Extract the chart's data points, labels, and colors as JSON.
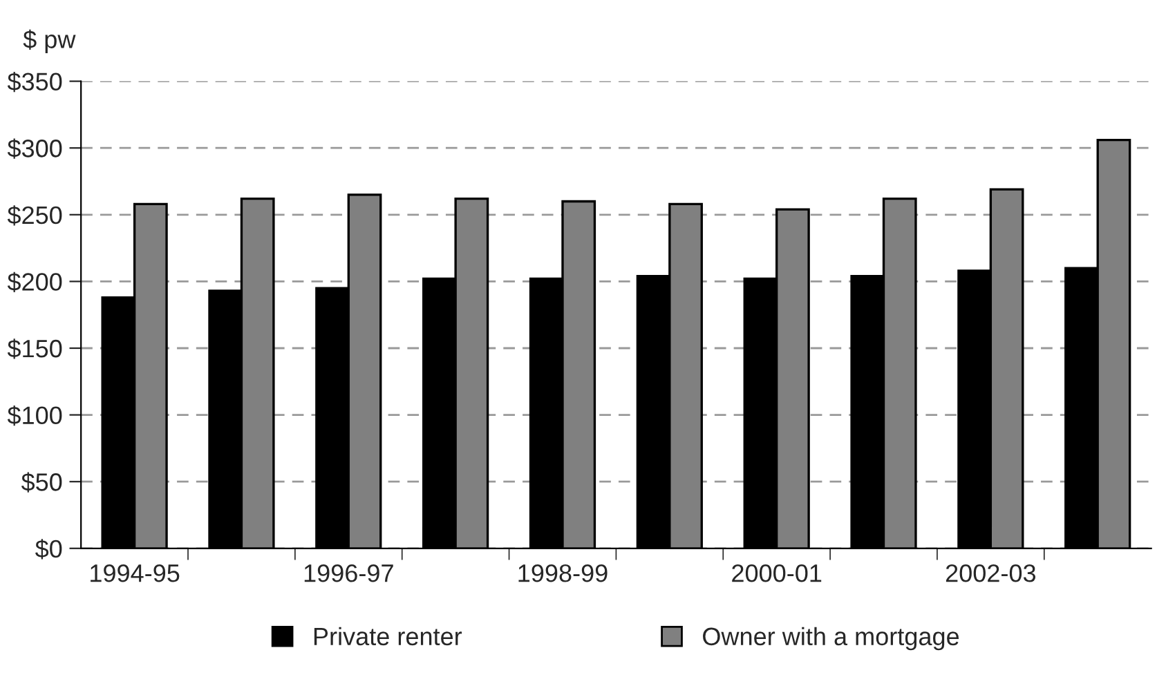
{
  "chart_data": {
    "type": "bar",
    "ylabel": "$ pw",
    "categories": [
      "1994-95",
      null,
      "1996-97",
      null,
      "1998-99",
      null,
      "2000-01",
      null,
      "2002-03",
      null
    ],
    "series": [
      {
        "name": "Private renter",
        "color": "#000000",
        "values": [
          188,
          193,
          195,
          202,
          202,
          204,
          202,
          204,
          208,
          210
        ]
      },
      {
        "name": "Owner with a mortgage",
        "color": "#808080",
        "values": [
          258,
          262,
          265,
          262,
          260,
          258,
          254,
          262,
          269,
          306
        ]
      }
    ],
    "ylim": [
      0,
      350
    ],
    "yticks": [
      {
        "value": 0,
        "label": "$0"
      },
      {
        "value": 50,
        "label": "$50"
      },
      {
        "value": 100,
        "label": "$100"
      },
      {
        "value": 150,
        "label": "$150"
      },
      {
        "value": 200,
        "label": "$200"
      },
      {
        "value": 250,
        "label": "$250"
      },
      {
        "value": 300,
        "label": "$300"
      },
      {
        "value": 350,
        "label": "$350"
      }
    ],
    "grid": "y",
    "legend": "bottom"
  }
}
